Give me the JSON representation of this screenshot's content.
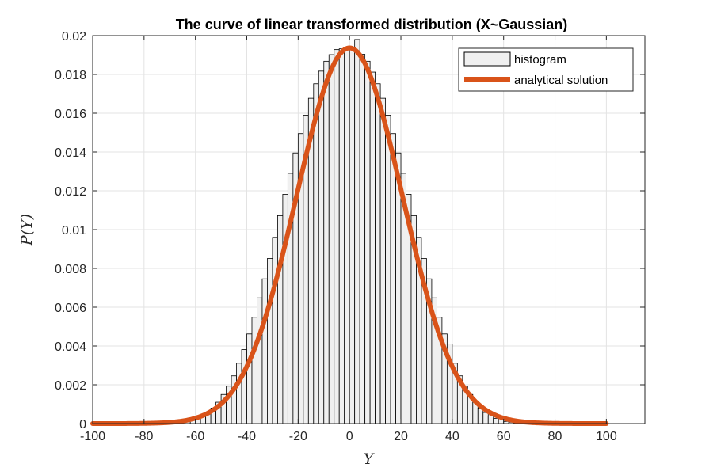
{
  "chart_data": {
    "type": "bar",
    "title": "The curve of linear transformed distribution (X~Gaussian)",
    "xlabel": "Y",
    "ylabel": "P(Y)",
    "xlim": [
      -100,
      115
    ],
    "ylim": [
      0,
      0.02
    ],
    "x_ticks": [
      "-100",
      "-80",
      "-60",
      "-40",
      "-20",
      "0",
      "20",
      "40",
      "60",
      "80",
      "100"
    ],
    "x_tick_values": [
      -100,
      -80,
      -60,
      -40,
      -20,
      0,
      20,
      40,
      60,
      80,
      100
    ],
    "y_ticks": [
      "0",
      "0.002",
      "0.004",
      "0.006",
      "0.008",
      "0.01",
      "0.012",
      "0.014",
      "0.016",
      "0.018",
      "0.02"
    ],
    "y_tick_values": [
      0,
      0.002,
      0.004,
      0.006,
      0.008,
      0.01,
      0.012,
      0.014,
      0.016,
      0.018,
      0.02
    ],
    "grid": true,
    "legend_position": "top-right",
    "series": [
      {
        "name": "histogram",
        "kind": "histogram",
        "bin_width": 2,
        "color": "#f0f0f0",
        "edge_color": "#000000",
        "bin_centers": [
          -69,
          -67,
          -65,
          -63,
          -61,
          -59,
          -57,
          -55,
          -53,
          -51,
          -49,
          -47,
          -45,
          -43,
          -41,
          -39,
          -37,
          -35,
          -33,
          -31,
          -29,
          -27,
          -25,
          -23,
          -21,
          -19,
          -17,
          -15,
          -13,
          -11,
          -9,
          -7,
          -5,
          -3,
          -1,
          1,
          3,
          5,
          7,
          9,
          11,
          13,
          15,
          17,
          19,
          21,
          23,
          25,
          27,
          29,
          31,
          33,
          35,
          37,
          39,
          41,
          43,
          45,
          47,
          49,
          51,
          53,
          55,
          57,
          59,
          61,
          63,
          65,
          67,
          69
        ],
        "values": [
          2e-05,
          4e-05,
          7e-05,
          0.00011,
          0.00018,
          0.00027,
          0.0004,
          0.00057,
          0.0008,
          0.0011,
          0.0015,
          0.00193,
          0.00246,
          0.00311,
          0.00382,
          0.00462,
          0.00548,
          0.00648,
          0.00746,
          0.00851,
          0.0096,
          0.01072,
          0.01182,
          0.0129,
          0.01395,
          0.01495,
          0.0159,
          0.01677,
          0.01752,
          0.01817,
          0.01868,
          0.01902,
          0.01928,
          0.01932,
          0.01928,
          0.01934,
          0.0198,
          0.01904,
          0.01868,
          0.01812,
          0.01752,
          0.01677,
          0.0159,
          0.01495,
          0.01395,
          0.0129,
          0.01182,
          0.01072,
          0.0096,
          0.00851,
          0.00746,
          0.00648,
          0.00548,
          0.00462,
          0.0041,
          0.00311,
          0.00246,
          0.00193,
          0.0015,
          0.0011,
          0.0008,
          0.00057,
          0.0004,
          0.00027,
          0.00018,
          0.00011,
          7e-05,
          4e-05,
          2e-05,
          1e-05
        ]
      },
      {
        "name": "analytical solution",
        "kind": "line",
        "color": "#d95319",
        "distribution": "normal",
        "mean": 0,
        "std": 20.6,
        "x_range": [
          -100,
          100
        ]
      }
    ]
  }
}
